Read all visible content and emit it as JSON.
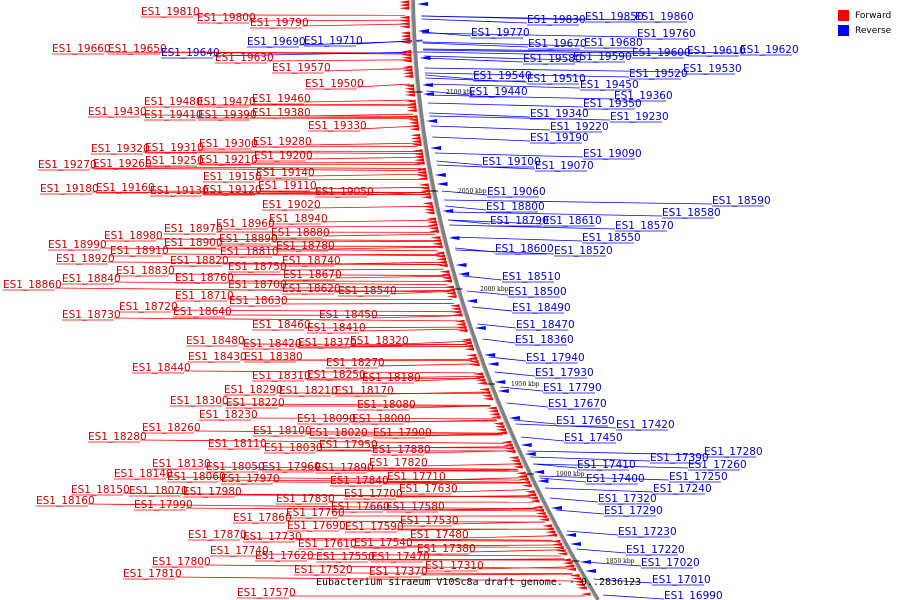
{
  "colors": {
    "forward": "#ff0000",
    "reverse": "#0000ff",
    "forward_text": "#cc0000",
    "reverse_text": "#0000cc",
    "backbone": "#808080"
  },
  "legend": {
    "forward_label": "Forward",
    "reverse_label": "Reverse"
  },
  "caption": "Eubacterium siraeum V10Sc8a draft genome. - 0..2836123",
  "ticks": [
    "2100 kbp",
    "2050 kbp",
    "2000 kbp",
    "1950 kbp",
    "1900 kbp",
    "1850 kbp"
  ],
  "forward_labels": [
    [
      "ES1_19810",
      141,
      11
    ],
    [
      "ES1_19800",
      197,
      17
    ],
    [
      "ES1_19790",
      250,
      22
    ],
    [
      "ES1_19660",
      52,
      48
    ],
    [
      "ES1_19650",
      108,
      48
    ],
    [
      "ES1_19630",
      215,
      57
    ],
    [
      "ES1_19570",
      272,
      67
    ],
    [
      "ES1_19500",
      305,
      83
    ],
    [
      "ES1_19480",
      144,
      101
    ],
    [
      "ES1_19470",
      197,
      101
    ],
    [
      "ES1_19460",
      252,
      98
    ],
    [
      "ES1_19430",
      88,
      111
    ],
    [
      "ES1_19410",
      144,
      114
    ],
    [
      "ES1_19390",
      198,
      114
    ],
    [
      "ES1_19380",
      252,
      112
    ],
    [
      "ES1_19330",
      308,
      125
    ],
    [
      "ES1_19300",
      199,
      143
    ],
    [
      "ES1_19280",
      253,
      141
    ],
    [
      "ES1_19320",
      91,
      148
    ],
    [
      "ES1_19310",
      145,
      147
    ],
    [
      "ES1_19270",
      38,
      164
    ],
    [
      "ES1_19260",
      93,
      163
    ],
    [
      "ES1_19250",
      145,
      160
    ],
    [
      "ES1_19210",
      199,
      159
    ],
    [
      "ES1_19200",
      254,
      155
    ],
    [
      "ES1_19140",
      256,
      172
    ],
    [
      "ES1_19150",
      203,
      176
    ],
    [
      "ES1_19110",
      258,
      185
    ],
    [
      "ES1_19180",
      40,
      188
    ],
    [
      "ES1_19160",
      96,
      187
    ],
    [
      "ES1_19130",
      150,
      190
    ],
    [
      "ES1_19120",
      203,
      189
    ],
    [
      "ES1_19050",
      315,
      191
    ],
    [
      "ES1_19020",
      262,
      204
    ],
    [
      "ES1_18970",
      164,
      228
    ],
    [
      "ES1_18960",
      216,
      223
    ],
    [
      "ES1_18940",
      269,
      218
    ],
    [
      "ES1_18880",
      271,
      232
    ],
    [
      "ES1_18980",
      104,
      235
    ],
    [
      "ES1_18890",
      219,
      238
    ],
    [
      "ES1_18990",
      48,
      244
    ],
    [
      "ES1_18910",
      110,
      250
    ],
    [
      "ES1_18900",
      164,
      242
    ],
    [
      "ES1_18810",
      220,
      251
    ],
    [
      "ES1_18780",
      276,
      245
    ],
    [
      "ES1_18920",
      56,
      258
    ],
    [
      "ES1_18830",
      116,
      270
    ],
    [
      "ES1_18820",
      170,
      260
    ],
    [
      "ES1_18750",
      228,
      266
    ],
    [
      "ES1_18740",
      282,
      260
    ],
    [
      "ES1_18840",
      62,
      278
    ],
    [
      "ES1_18670",
      283,
      274
    ],
    [
      "ES1_18760",
      175,
      277
    ],
    [
      "ES1_18860",
      3,
      284
    ],
    [
      "ES1_18700",
      228,
      284
    ],
    [
      "ES1_18620",
      282,
      288
    ],
    [
      "ES1_18540",
      338,
      290
    ],
    [
      "ES1_18710",
      175,
      295
    ],
    [
      "ES1_18630",
      229,
      300
    ],
    [
      "ES1_18720",
      119,
      306
    ],
    [
      "ES1_18640",
      173,
      311
    ],
    [
      "ES1_18730",
      62,
      314
    ],
    [
      "ES1_18450",
      319,
      314
    ],
    [
      "ES1_18460",
      252,
      324
    ],
    [
      "ES1_18410",
      307,
      327
    ],
    [
      "ES1_18480",
      186,
      340
    ],
    [
      "ES1_18420",
      243,
      343
    ],
    [
      "ES1_18370",
      298,
      342
    ],
    [
      "ES1_18320",
      350,
      340
    ],
    [
      "ES1_18430",
      188,
      356
    ],
    [
      "ES1_18380",
      244,
      356
    ],
    [
      "ES1_18270",
      326,
      362
    ],
    [
      "ES1_18440",
      132,
      367
    ],
    [
      "ES1_18310",
      252,
      375
    ],
    [
      "ES1_18250",
      307,
      374
    ],
    [
      "ES1_18180",
      362,
      377
    ],
    [
      "ES1_18290",
      224,
      389
    ],
    [
      "ES1_18210",
      279,
      390
    ],
    [
      "ES1_18170",
      335,
      390
    ],
    [
      "ES1_18080",
      357,
      404
    ],
    [
      "ES1_18300",
      170,
      400
    ],
    [
      "ES1_18220",
      226,
      402
    ],
    [
      "ES1_18230",
      199,
      414
    ],
    [
      "ES1_18090",
      297,
      418
    ],
    [
      "ES1_18000",
      352,
      418
    ],
    [
      "ES1_18260",
      142,
      427
    ],
    [
      "ES1_18100",
      253,
      430
    ],
    [
      "ES1_18020",
      309,
      432
    ],
    [
      "ES1_17900",
      373,
      432
    ],
    [
      "ES1_18280",
      88,
      436
    ],
    [
      "ES1_18110",
      208,
      443
    ],
    [
      "ES1_18030",
      264,
      447
    ],
    [
      "ES1_17950",
      319,
      444
    ],
    [
      "ES1_17880",
      372,
      449
    ],
    [
      "ES1_18130",
      152,
      463
    ],
    [
      "ES1_18050",
      206,
      466
    ],
    [
      "ES1_17960",
      262,
      466
    ],
    [
      "ES1_17890",
      315,
      467
    ],
    [
      "ES1_17820",
      369,
      462
    ],
    [
      "ES1_18140",
      114,
      473
    ],
    [
      "ES1_18060",
      167,
      476
    ],
    [
      "ES1_17970",
      221,
      478
    ],
    [
      "ES1_17840",
      330,
      480
    ],
    [
      "ES1_17710",
      387,
      476
    ],
    [
      "ES1_18150",
      71,
      489
    ],
    [
      "ES1_18070",
      129,
      490
    ],
    [
      "ES1_17980",
      183,
      491
    ],
    [
      "ES1_17700",
      344,
      493
    ],
    [
      "ES1_17630",
      399,
      488
    ],
    [
      "ES1_18160",
      36,
      500
    ],
    [
      "ES1_17990",
      134,
      504
    ],
    [
      "ES1_17830",
      276,
      498
    ],
    [
      "ES1_17660",
      331,
      506
    ],
    [
      "ES1_17580",
      386,
      506
    ],
    [
      "ES1_17860",
      233,
      517
    ],
    [
      "ES1_17590",
      345,
      526
    ],
    [
      "ES1_17530",
      400,
      520
    ],
    [
      "ES1_17760",
      286,
      512
    ],
    [
      "ES1_17690",
      287,
      525
    ],
    [
      "ES1_17870",
      188,
      534
    ],
    [
      "ES1_17730",
      243,
      536
    ],
    [
      "ES1_17480",
      410,
      534
    ],
    [
      "ES1_17610",
      298,
      543
    ],
    [
      "ES1_17540",
      354,
      542
    ],
    [
      "ES1_17740",
      210,
      550
    ],
    [
      "ES1_17620",
      255,
      555
    ],
    [
      "ES1_17550",
      316,
      556
    ],
    [
      "ES1_17470",
      371,
      556
    ],
    [
      "ES1_17380",
      417,
      548
    ],
    [
      "ES1_17800",
      152,
      561
    ],
    [
      "ES1_17520",
      294,
      569
    ],
    [
      "ES1_17370",
      369,
      571
    ],
    [
      "ES1_17310",
      425,
      565
    ],
    [
      "ES1_17810",
      123,
      573
    ],
    [
      "ES1_17570",
      237,
      592
    ]
  ],
  "reverse_labels": [
    [
      "ES1_19830",
      527,
      19
    ],
    [
      "ES1_19850",
      585,
      16
    ],
    [
      "ES1_19860",
      635,
      16
    ],
    [
      "ES1_19770",
      471,
      32
    ],
    [
      "ES1_19760",
      637,
      33
    ],
    [
      "ES1_19690",
      247,
      41
    ],
    [
      "ES1_19710",
      304,
      40
    ],
    [
      "ES1_19640",
      161,
      52
    ],
    [
      "ES1_19670",
      528,
      43
    ],
    [
      "ES1_19680",
      584,
      42
    ],
    [
      "ES1_19600",
      632,
      52
    ],
    [
      "ES1_19610",
      687,
      50
    ],
    [
      "ES1_19620",
      740,
      49
    ],
    [
      "ES1_19580",
      523,
      58
    ],
    [
      "ES1_19590",
      573,
      56
    ],
    [
      "ES1_19540",
      473,
      75
    ],
    [
      "ES1_19510",
      527,
      78
    ],
    [
      "ES1_19450",
      580,
      84
    ],
    [
      "ES1_19520",
      629,
      73
    ],
    [
      "ES1_19530",
      683,
      68
    ],
    [
      "ES1_19440",
      469,
      91
    ],
    [
      "ES1_19360",
      614,
      95
    ],
    [
      "ES1_19350",
      583,
      103
    ],
    [
      "ES1_19340",
      530,
      113
    ],
    [
      "ES1_19230",
      610,
      116
    ],
    [
      "ES1_19220",
      550,
      126
    ],
    [
      "ES1_19190",
      530,
      137
    ],
    [
      "ES1_19090",
      583,
      153
    ],
    [
      "ES1_19100",
      482,
      161
    ],
    [
      "ES1_19070",
      535,
      165
    ],
    [
      "ES1_19060",
      487,
      191
    ],
    [
      "ES1_18800",
      486,
      206
    ],
    [
      "ES1_18590",
      712,
      200
    ],
    [
      "ES1_18580",
      662,
      212
    ],
    [
      "ES1_18790",
      490,
      220
    ],
    [
      "ES1_18610",
      543,
      220
    ],
    [
      "ES1_18570",
      615,
      225
    ],
    [
      "ES1_18550",
      582,
      237
    ],
    [
      "ES1_18600",
      495,
      248
    ],
    [
      "ES1_18520",
      554,
      250
    ],
    [
      "ES1_18510",
      502,
      276
    ],
    [
      "ES1_18500",
      508,
      291
    ],
    [
      "ES1_18490",
      512,
      307
    ],
    [
      "ES1_18470",
      516,
      324
    ],
    [
      "ES1_18360",
      515,
      339
    ],
    [
      "ES1_17940",
      526,
      357
    ],
    [
      "ES1_17930",
      535,
      372
    ],
    [
      "ES1_17790",
      543,
      387
    ],
    [
      "ES1_17670",
      548,
      403
    ],
    [
      "ES1_17650",
      556,
      420
    ],
    [
      "ES1_17420",
      616,
      424
    ],
    [
      "ES1_17450",
      564,
      437
    ],
    [
      "ES1_17390",
      650,
      457
    ],
    [
      "ES1_17280",
      704,
      451
    ],
    [
      "ES1_17410",
      577,
      464
    ],
    [
      "ES1_17260",
      688,
      464
    ],
    [
      "ES1_17400",
      586,
      478
    ],
    [
      "ES1_17250",
      669,
      476
    ],
    [
      "ES1_17240",
      653,
      488
    ],
    [
      "ES1_17320",
      598,
      498
    ],
    [
      "ES1_17290",
      604,
      510
    ],
    [
      "ES1_17230",
      618,
      531
    ],
    [
      "ES1_17220",
      626,
      549
    ],
    [
      "ES1_17020",
      641,
      562
    ],
    [
      "ES1_17010",
      652,
      579
    ],
    [
      "ES1_16990",
      664,
      595
    ]
  ]
}
